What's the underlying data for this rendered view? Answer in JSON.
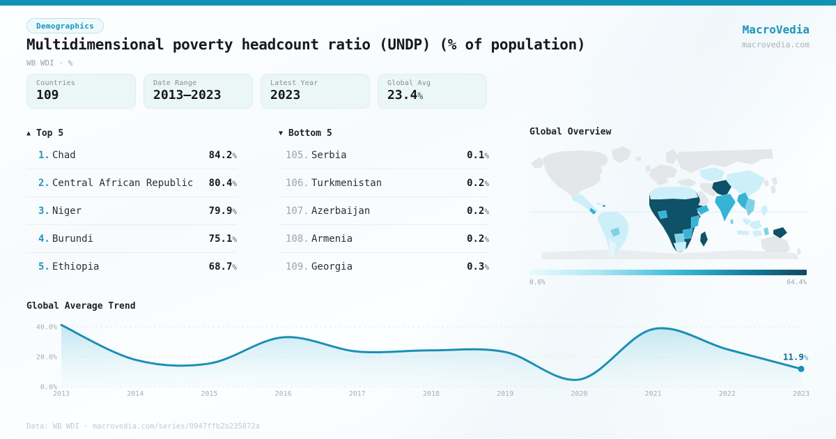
{
  "badge": "Demographics",
  "title": "Multidimensional poverty headcount ratio (UNDP) (% of population)",
  "subtitle": "WB WDI · %",
  "brand": {
    "name": "MacroVedia",
    "domain": "macrovedia.com"
  },
  "units": {
    "pct": "%"
  },
  "stats": [
    {
      "label": "Countries",
      "value": "109",
      "suffix": ""
    },
    {
      "label": "Date Range",
      "value": "2013—2023",
      "suffix": ""
    },
    {
      "label": "Latest Year",
      "value": "2023",
      "suffix": ""
    },
    {
      "label": "Global Avg",
      "value": "23.4",
      "suffix": "%"
    }
  ],
  "top5": {
    "arrow": "▲",
    "header": "Top 5",
    "rows": [
      {
        "rank": "1.",
        "name": "Chad",
        "value": "84.2"
      },
      {
        "rank": "2.",
        "name": "Central African Republic",
        "value": "80.4"
      },
      {
        "rank": "3.",
        "name": "Niger",
        "value": "79.9"
      },
      {
        "rank": "4.",
        "name": "Burundi",
        "value": "75.1"
      },
      {
        "rank": "5.",
        "name": "Ethiopia",
        "value": "68.7"
      }
    ]
  },
  "bottom5": {
    "arrow": "▼",
    "header": "Bottom 5",
    "rows": [
      {
        "rank": "105.",
        "name": "Serbia",
        "value": "0.1"
      },
      {
        "rank": "106.",
        "name": "Turkmenistan",
        "value": "0.2"
      },
      {
        "rank": "107.",
        "name": "Azerbaijan",
        "value": "0.2"
      },
      {
        "rank": "108.",
        "name": "Armenia",
        "value": "0.2"
      },
      {
        "rank": "109.",
        "name": "Georgia",
        "value": "0.3"
      }
    ]
  },
  "map": {
    "title": "Global Overview",
    "legend_min": "0.6%",
    "legend_max": "64.4%"
  },
  "trend": {
    "title": "Global Average Trend"
  },
  "footer": "Data: WB WDI · macrovedia.com/series/0947ffb2b235872a",
  "colors": {
    "topbar": "#1192b4",
    "accent": "#1796ba",
    "line": "#1b8fb4",
    "end_label": "#0c6c94",
    "grid": "#e4e8eb",
    "axis_text": "#a7aeb6",
    "scale_low": "#eafbfe",
    "scale_midlow": "#a9e5f2",
    "scale_mid": "#3fbcda",
    "scale_midhigh": "#1380a3",
    "scale_high": "#0d4a5e",
    "nodata": "#e3e7ea",
    "antarctica": "#e9edf0",
    "lvl_low": "#cdeff8",
    "lvl_faint": "#e8f4f7",
    "lvl_mid": "#7fd2e6",
    "lvl_high": "#35b4d6",
    "lvl_vhigh": "#0e5168"
  },
  "chart_data": [
    {
      "type": "line",
      "title": "Global Average Trend",
      "x": [
        2013,
        2014,
        2015,
        2016,
        2017,
        2018,
        2019,
        2020,
        2021,
        2022,
        2023
      ],
      "values": [
        41.2,
        18.0,
        15.5,
        33.0,
        23.5,
        24.3,
        23.2,
        4.8,
        38.5,
        25.0,
        11.9
      ],
      "ylabel": "%",
      "ylim": [
        0,
        45
      ],
      "yticks": [
        {
          "value": 0,
          "label": "0.0%"
        },
        {
          "value": 20,
          "label": "20.0%"
        },
        {
          "value": 40,
          "label": "40.0%"
        }
      ],
      "grid": "horizontal-dashed",
      "legend": "none",
      "end_annotation": {
        "x": 2023,
        "y": 11.9,
        "number": "11.9",
        "suffix": "%"
      }
    },
    {
      "type": "heatmap",
      "subtype": "world-choropleth",
      "title": "Global Overview",
      "scale": {
        "min_label": "0.6%",
        "max_label": "64.4%"
      },
      "regions": [
        {
          "name": "Sahel & Central Africa (Chad, Niger, Mali, DRC, Ethiopia)",
          "level": "very-high"
        },
        {
          "name": "Madagascar, Afghanistan/Pakistan, Papua New Guinea",
          "level": "very-high"
        },
        {
          "name": "East & West African coast (Ghana, Kenya, Tanzania, Zambia, Yemen)",
          "level": "high"
        },
        {
          "name": "India, Myanmar, Indochina",
          "level": "high"
        },
        {
          "name": "Namibia/Botswana, Bolivia, Central America",
          "level": "medium"
        },
        {
          "name": "Latin America, North Africa, Central Asia, China, Indonesia, South Africa",
          "level": "low"
        },
        {
          "name": "North America, Europe, Russia, Saudi Arabia, Somalia, Japan, Australia",
          "level": "no-data"
        }
      ]
    }
  ]
}
